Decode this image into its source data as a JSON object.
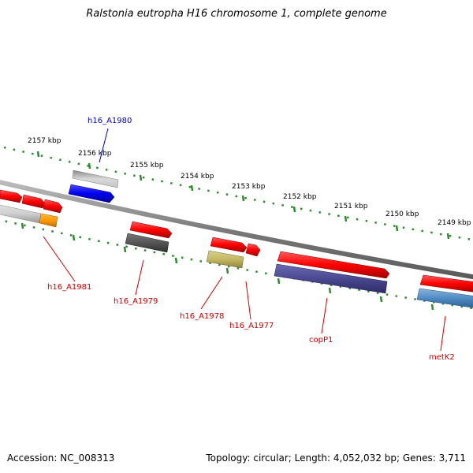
{
  "title": "Ralstonia eutropha H16 chromosome 1, complete genome",
  "footer": {
    "accession": "Accession: NC_008313",
    "topology": "Topology: circular; Length: 4,052,032 bp; Genes: 3,711"
  },
  "scale_labels": [
    "2157 kbp",
    "2156 kbp",
    "2155 kbp",
    "2154 kbp",
    "2153 kbp",
    "2152 kbp",
    "2151 kbp",
    "2150 kbp",
    "2149 kbp"
  ],
  "gene_labels": [
    {
      "id": "h16_A1980",
      "text": "h16_A1980",
      "color": "#0000cc"
    },
    {
      "id": "h16_A1981",
      "text": "h16_A1981",
      "color": "#cc0000"
    },
    {
      "id": "h16_A1979",
      "text": "h16_A1979",
      "color": "#cc0000"
    },
    {
      "id": "h16_A1978",
      "text": "h16_A1978",
      "color": "#cc0000"
    },
    {
      "id": "h16_A1977",
      "text": "h16_A1977",
      "color": "#cc0000"
    },
    {
      "id": "copP1",
      "text": "copP1",
      "color": "#cc0000"
    },
    {
      "id": "metK2",
      "text": "metK2",
      "color": "#cc0000"
    }
  ]
}
